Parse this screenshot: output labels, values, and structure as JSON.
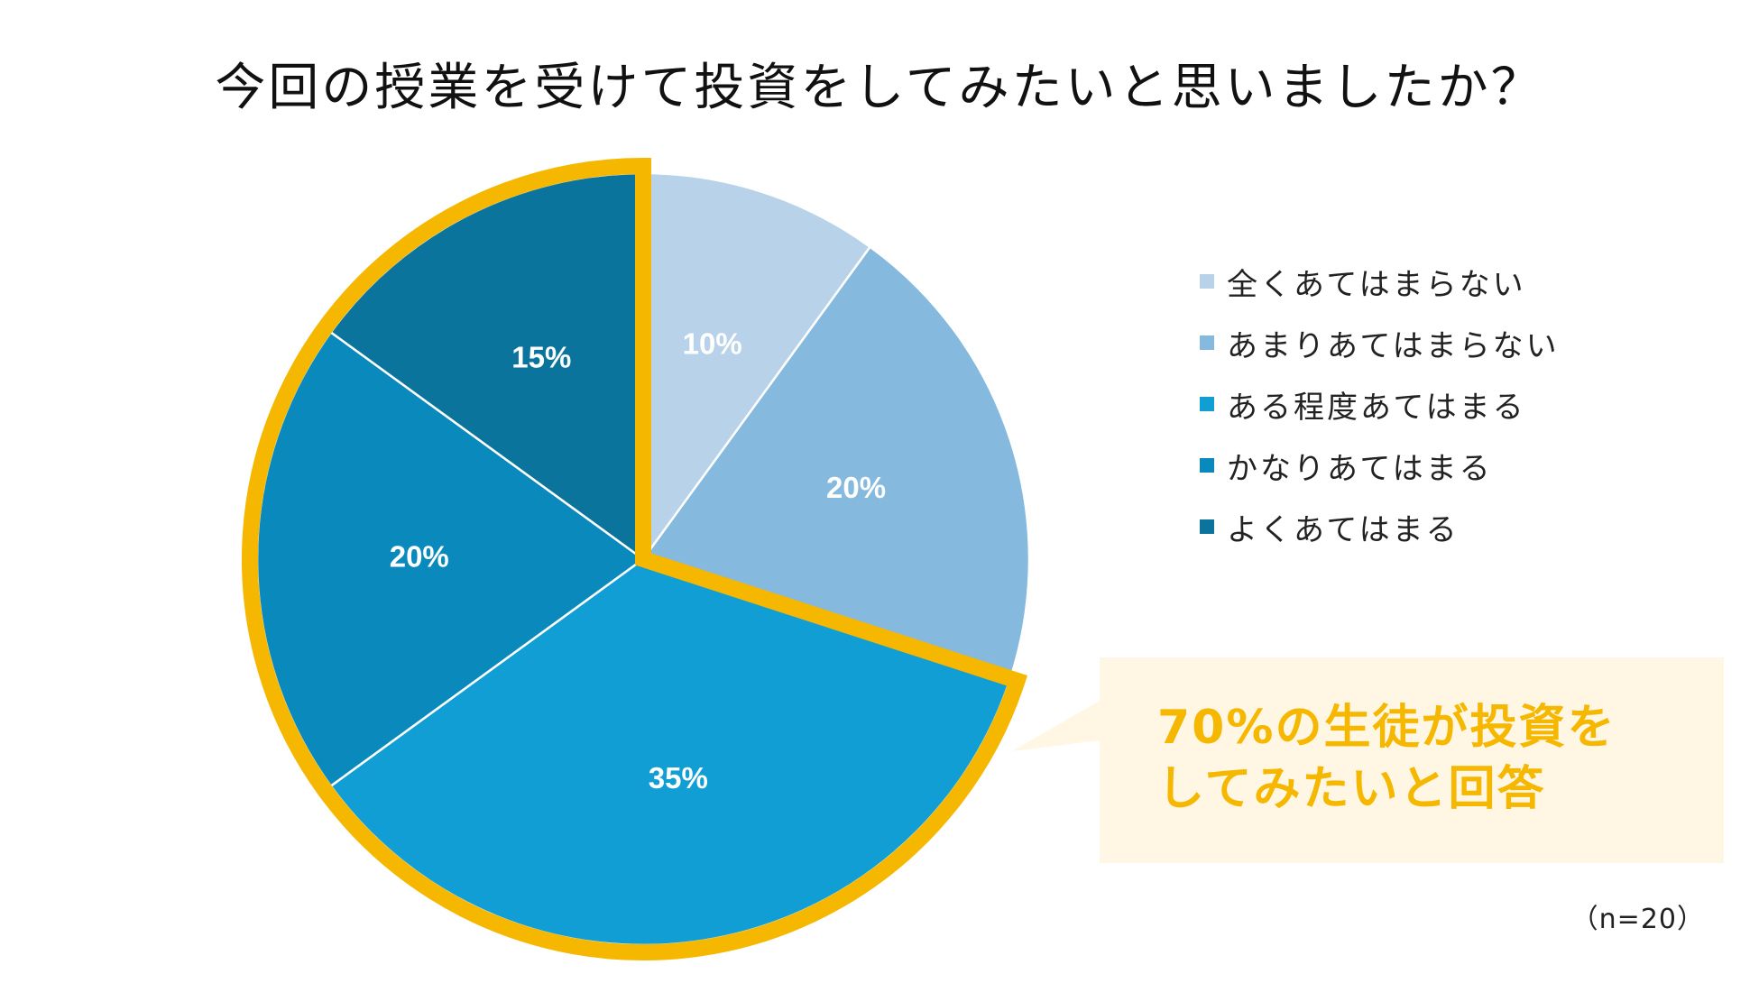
{
  "chart_data": {
    "type": "pie",
    "title": "今回の授業を受けて投資をしてみたいと思いましたか？",
    "categories": [
      "全くあてはまらない",
      "あまりあてはまらない",
      "ある程度あてはまる",
      "かなりあてはまる",
      "よくあてはまる"
    ],
    "values": [
      10,
      20,
      35,
      20,
      15
    ],
    "data_labels": [
      "10%",
      "20%",
      "35%",
      "20%",
      "15%"
    ],
    "colors": [
      "#b7d2e9",
      "#86b9de",
      "#119ed5",
      "#0a89bc",
      "#0b749c"
    ],
    "legend_position": "right",
    "start_angle": "12 o'clock",
    "direction": "clockwise",
    "highlight": {
      "categories": [
        "ある程度あてはまる",
        "かなりあてはまる",
        "よくあてはまる"
      ],
      "color": "#f5b700"
    }
  },
  "callout": {
    "lines": [
      "70%の生徒が投資を",
      "してみたいと回答"
    ],
    "background": "#fff7e4",
    "color": "#f5b700"
  },
  "sample_size": "（n=20）"
}
